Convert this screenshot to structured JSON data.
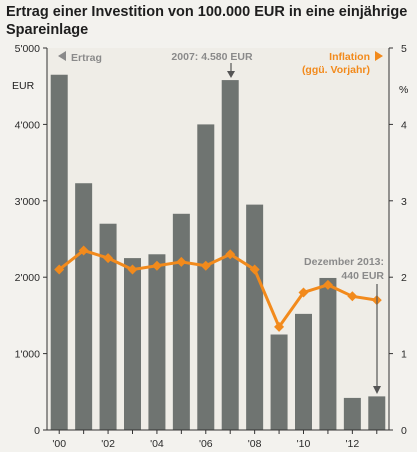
{
  "chart_data": {
    "type": "bar+line",
    "title_line1": "Ertrag einer Investition von 100.000 EUR in eine einjährige",
    "title_line2": "Spareinlage",
    "categories": [
      "2000",
      "2001",
      "2002",
      "2003",
      "2004",
      "2005",
      "2006",
      "2007",
      "2008",
      "2009",
      "2010",
      "2011",
      "2012",
      "2013"
    ],
    "x_tick_labels": [
      "'00",
      "'02",
      "'04",
      "'06",
      "'08",
      "'10",
      "'12"
    ],
    "left_axis": {
      "unit": "EUR",
      "ylim": [
        0,
        5000
      ],
      "tick_labels": [
        "0",
        "1'000",
        "2'000",
        "3'000",
        "4'000",
        "5'000"
      ]
    },
    "right_axis": {
      "unit": "%",
      "ylim": [
        0,
        5
      ],
      "tick_labels": [
        "0",
        "1",
        "2",
        "3",
        "4",
        "5"
      ]
    },
    "series": [
      {
        "name": "Ertrag",
        "kind": "bar",
        "axis": "left",
        "color": "#6f7471",
        "values": [
          4650,
          3230,
          2700,
          2250,
          2300,
          2830,
          4000,
          4580,
          2950,
          1250,
          1520,
          1990,
          420,
          440
        ]
      },
      {
        "name": "Inflation (ggü. Vorjahr)",
        "kind": "line",
        "axis": "right",
        "color": "#f28a1c",
        "values": [
          2.1,
          2.35,
          2.25,
          2.1,
          2.15,
          2.2,
          2.15,
          2.3,
          2.1,
          1.35,
          1.8,
          1.9,
          1.75,
          1.7
        ]
      }
    ],
    "legend": {
      "left": "Ertrag",
      "right_line1": "Inflation",
      "right_line2": "(ggü. Vorjahr)"
    },
    "annotations": {
      "a2007": "2007: 4.580 EUR",
      "a2013_line1": "Dezember 2013:",
      "a2013_line2": "440 EUR"
    },
    "grid": false
  }
}
